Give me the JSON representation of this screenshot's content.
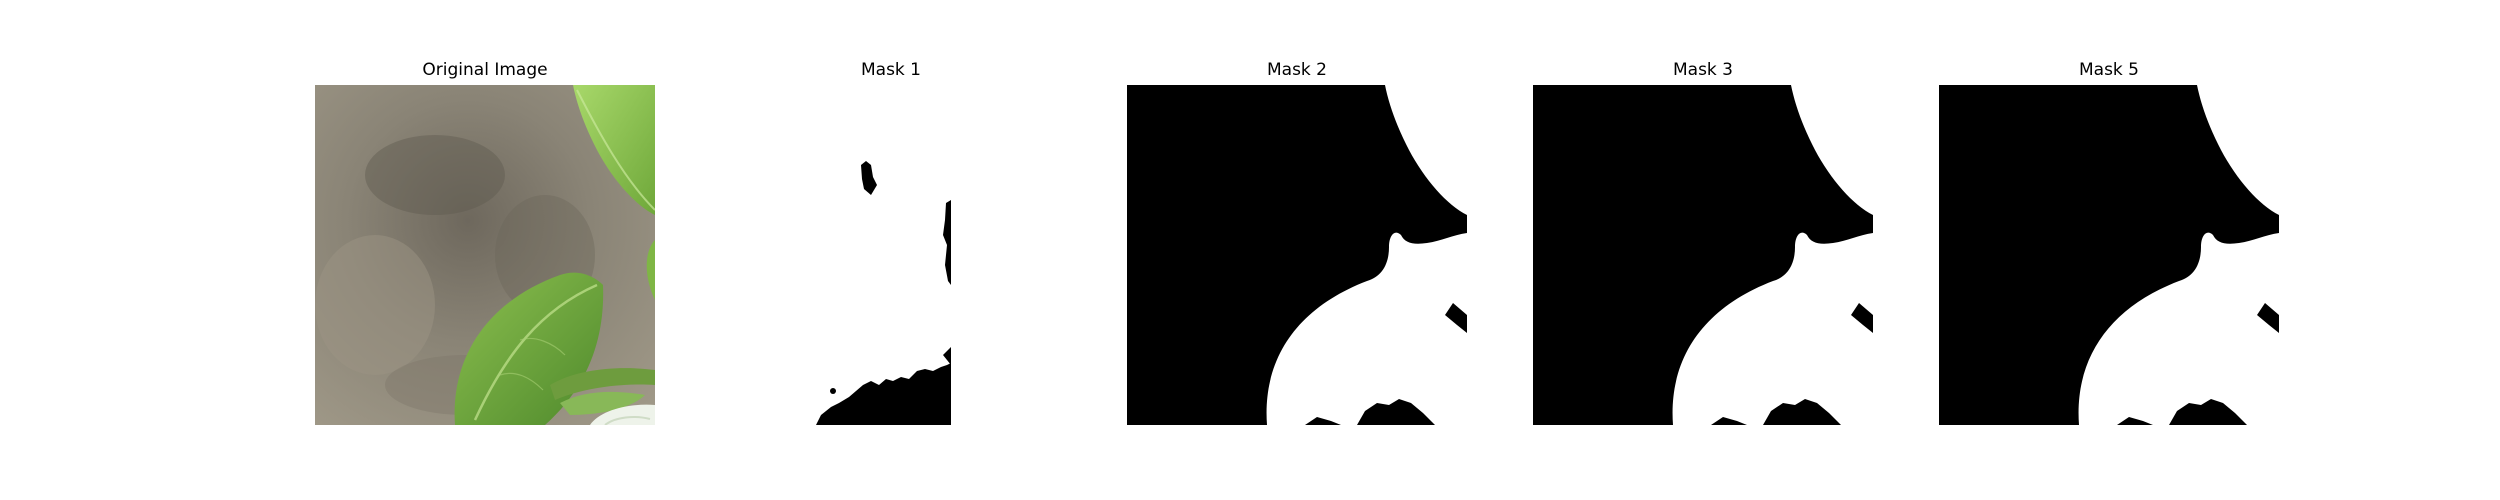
{
  "panels": [
    {
      "title": "Original Image"
    },
    {
      "title": "Mask 1"
    },
    {
      "title": "Mask 2"
    },
    {
      "title": "Mask 3"
    },
    {
      "title": "Mask 5"
    }
  ],
  "colors": {
    "mask_foreground": "#ffffff",
    "mask_background": "#000000",
    "wall_gray": "#8a8476",
    "leaf_green": "#6aa23a",
    "leaf_dark": "#3f6b24"
  }
}
